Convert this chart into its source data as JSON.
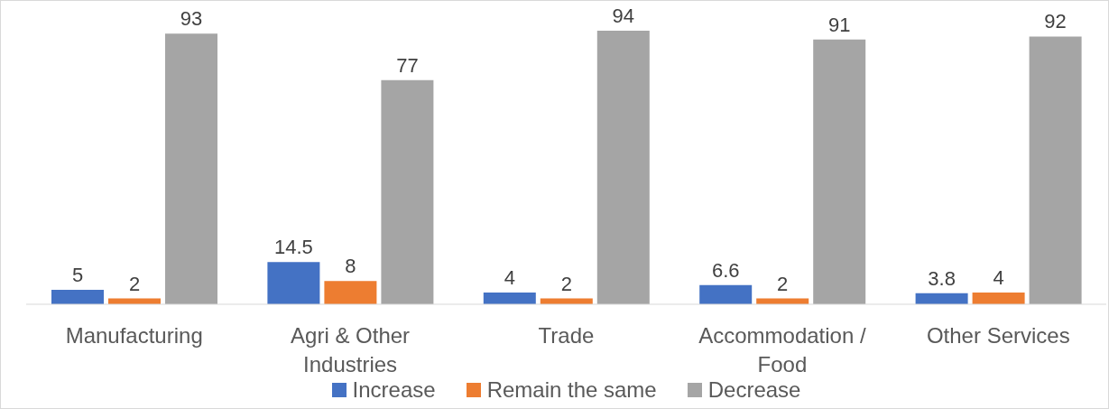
{
  "chart_data": {
    "type": "bar",
    "categories": [
      "Manufacturing",
      "Agri & Other Industries",
      "Trade",
      "Accommodation / Food",
      "Other Services"
    ],
    "series": [
      {
        "name": "Increase",
        "color": "#4472c4",
        "values": [
          5,
          14.5,
          4,
          6.6,
          3.8
        ]
      },
      {
        "name": "Remain the same",
        "color": "#ed7d31",
        "values": [
          2,
          8,
          2,
          2,
          4
        ]
      },
      {
        "name": "Decrease",
        "color": "#a5a5a5",
        "values": [
          93,
          77,
          94,
          91,
          92
        ]
      }
    ],
    "data_labels": true,
    "legend": "bottom"
  }
}
